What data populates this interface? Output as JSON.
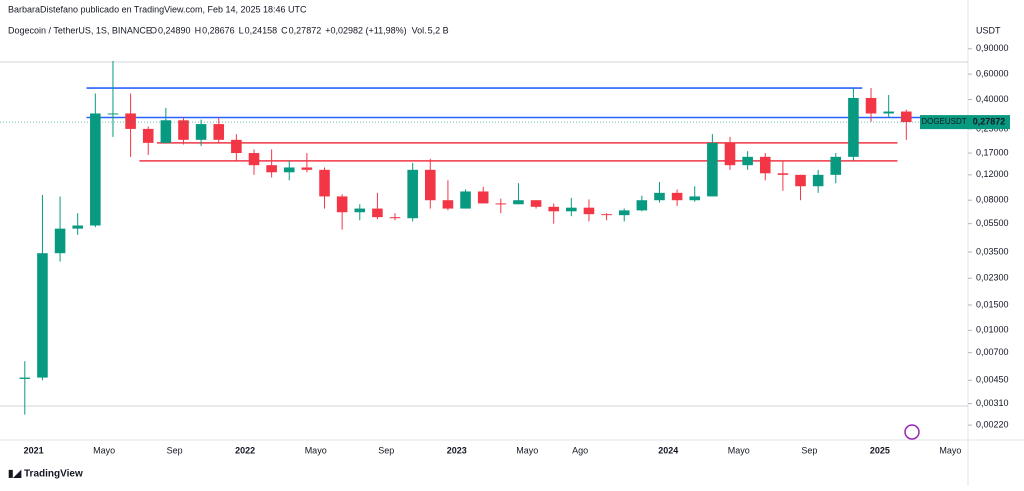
{
  "header": {
    "attribution": "BarbaraDistefano publicado en TradingView.com, Feb 14, 2025 18:46 UTC",
    "symbol": "Dogecoin / TetherUS, 1S, BINANCE",
    "ohlc": [
      {
        "label": "O",
        "value": "0,24890"
      },
      {
        "label": "H",
        "value": "0,28676"
      },
      {
        "label": "L",
        "value": "0,24158"
      },
      {
        "label": "C",
        "value": "0,27872"
      }
    ],
    "change": "+0,02982 (+11,98%)",
    "volume_label": "Vol.",
    "volume": "5,2 B"
  },
  "currency": "USDT",
  "price_tag": {
    "symbol": "DOGEUSDT",
    "price": {
      "value": 0.27872,
      "label": "0,27872"
    }
  },
  "footer": "TradingView",
  "chart_data": {
    "type": "candlestick",
    "log_scale": true,
    "grid": false,
    "up_color": "#089981",
    "down_color": "#f23645",
    "x": [
      "2020-12",
      "2021-01",
      "2021-02",
      "2021-03",
      "2021-04",
      "2021-05",
      "2021-06",
      "2021-07",
      "2021-08",
      "2021-09",
      "2021-10",
      "2021-11",
      "2021-12",
      "2022-01",
      "2022-02",
      "2022-03",
      "2022-04",
      "2022-05",
      "2022-06",
      "2022-07",
      "2022-08",
      "2022-09",
      "2022-10",
      "2022-11",
      "2022-12",
      "2023-01",
      "2023-02",
      "2023-03",
      "2023-04",
      "2023-05",
      "2023-06",
      "2023-07",
      "2023-08",
      "2023-09",
      "2023-10",
      "2023-11",
      "2023-12",
      "2024-01",
      "2024-02",
      "2024-03",
      "2024-04",
      "2024-05",
      "2024-06",
      "2024-07",
      "2024-08",
      "2024-09",
      "2024-10",
      "2024-11",
      "2024-12",
      "2025-01",
      "2025-02"
    ],
    "open": [
      0.0046,
      0.0047,
      0.0343,
      0.0508,
      0.0534,
      0.32,
      0.32,
      0.25,
      0.2,
      0.287,
      0.21,
      0.27,
      0.21,
      0.17,
      0.14,
      0.125,
      0.135,
      0.13,
      0.085,
      0.066,
      0.07,
      0.061,
      0.06,
      0.13,
      0.08,
      0.07,
      0.092,
      0.076,
      0.075,
      0.08,
      0.072,
      0.067,
      0.071,
      0.064,
      0.063,
      0.068,
      0.08,
      0.09,
      0.08,
      0.085,
      0.2,
      0.14,
      0.16,
      0.123,
      0.12,
      0.1,
      0.12,
      0.16,
      0.41,
      0.32,
      0.33
    ],
    "high": [
      0.0061,
      0.087,
      0.085,
      0.065,
      0.44,
      0.74,
      0.44,
      0.26,
      0.35,
      0.3,
      0.29,
      0.3,
      0.23,
      0.18,
      0.18,
      0.15,
      0.17,
      0.135,
      0.088,
      0.075,
      0.09,
      0.065,
      0.145,
      0.155,
      0.11,
      0.095,
      0.099,
      0.082,
      0.105,
      0.08,
      0.076,
      0.083,
      0.081,
      0.065,
      0.07,
      0.086,
      0.107,
      0.095,
      0.1,
      0.23,
      0.22,
      0.175,
      0.17,
      0.15,
      0.12,
      0.13,
      0.17,
      0.48,
      0.48,
      0.43,
      0.34
    ],
    "low": [
      0.0026,
      0.0045,
      0.03,
      0.046,
      0.052,
      0.22,
      0.16,
      0.165,
      0.198,
      0.195,
      0.19,
      0.2,
      0.15,
      0.12,
      0.115,
      0.11,
      0.125,
      0.07,
      0.05,
      0.058,
      0.059,
      0.058,
      0.057,
      0.07,
      0.068,
      0.07,
      0.076,
      0.065,
      0.075,
      0.07,
      0.055,
      0.062,
      0.057,
      0.058,
      0.057,
      0.067,
      0.077,
      0.073,
      0.078,
      0.085,
      0.13,
      0.13,
      0.11,
      0.093,
      0.08,
      0.09,
      0.105,
      0.15,
      0.28,
      0.3,
      0.21
    ],
    "close": [
      0.0047,
      0.0343,
      0.0508,
      0.0534,
      0.32,
      0.32,
      0.25,
      0.2,
      0.287,
      0.21,
      0.27,
      0.21,
      0.17,
      0.14,
      0.125,
      0.135,
      0.13,
      0.085,
      0.066,
      0.07,
      0.061,
      0.06,
      0.13,
      0.08,
      0.07,
      0.092,
      0.076,
      0.075,
      0.08,
      0.072,
      0.067,
      0.071,
      0.064,
      0.063,
      0.068,
      0.08,
      0.09,
      0.08,
      0.085,
      0.2,
      0.14,
      0.16,
      0.123,
      0.12,
      0.1,
      0.12,
      0.16,
      0.41,
      0.32,
      0.33,
      0.2787
    ],
    "levels": [
      {
        "value": 0.48,
        "from": "2021-04",
        "to": "2024-12",
        "color": "#2962ff"
      },
      {
        "value": 0.3,
        "from": "2021-04",
        "to": "2025-04",
        "color": "#2962ff"
      },
      {
        "value": 0.2,
        "from": "2021-08",
        "to": "2025-02",
        "color": "#f23645"
      },
      {
        "value": 0.15,
        "from": "2021-07",
        "to": "2025-02",
        "color": "#f23645"
      }
    ],
    "xlim": [
      "2020-12",
      "2025-06"
    ],
    "xticks": [
      {
        "value": "2021-01",
        "label": "2021"
      },
      {
        "value": "2021-05",
        "label": "Mayo"
      },
      {
        "value": "2021-09",
        "label": "Sep"
      },
      {
        "value": "2022-01",
        "label": "2022"
      },
      {
        "value": "2022-05",
        "label": "Mayo"
      },
      {
        "value": "2022-09",
        "label": "Sep"
      },
      {
        "value": "2023-01",
        "label": "2023"
      },
      {
        "value": "2023-05",
        "label": "Mayo"
      },
      {
        "value": "2023-08",
        "label": "Ago"
      },
      {
        "value": "2024-01",
        "label": "2024"
      },
      {
        "value": "2024-05",
        "label": "Mayo"
      },
      {
        "value": "2024-09",
        "label": "Sep"
      },
      {
        "value": "2025-01",
        "label": "2025"
      },
      {
        "value": "2025-05",
        "label": "Mayo"
      }
    ],
    "ylim": [
      0.00179,
      1.38
    ],
    "yticks": [
      {
        "value": 0.9,
        "label": "0,90000"
      },
      {
        "value": 0.6,
        "label": "0,60000"
      },
      {
        "value": 0.4,
        "label": "0,40000"
      },
      {
        "value": 0.25,
        "label": "0,25000"
      },
      {
        "value": 0.17,
        "label": "0,17000"
      },
      {
        "value": 0.12,
        "label": "0,12000"
      },
      {
        "value": 0.08,
        "label": "0,08000"
      },
      {
        "value": 0.055,
        "label": "0,05500"
      },
      {
        "value": 0.035,
        "label": "0,03500"
      },
      {
        "value": 0.023,
        "label": "0,02300"
      },
      {
        "value": 0.015,
        "label": "0,01500"
      },
      {
        "value": 0.01,
        "label": "0,01000"
      },
      {
        "value": 0.007,
        "label": "0,00700"
      },
      {
        "value": 0.0045,
        "label": "0,00450"
      },
      {
        "value": 0.0031,
        "label": "0,00310"
      },
      {
        "value": 0.0022,
        "label": "0,00220"
      }
    ]
  }
}
